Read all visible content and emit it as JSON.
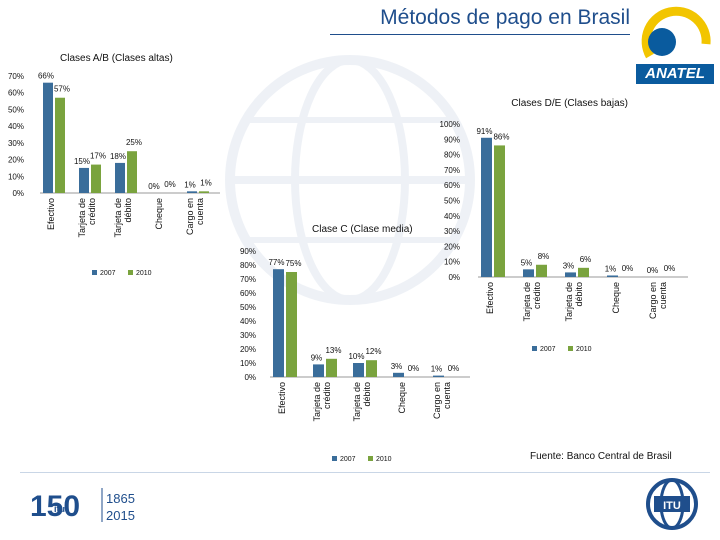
{
  "header": {
    "title": "Métodos de pago en Brasil",
    "logo_text": "ANATEL"
  },
  "colors": {
    "series_2007": "#3a6d9a",
    "series_2010": "#7aa33e",
    "title": "#1f4e8c",
    "anatel_blue": "#0a5b9e",
    "anatel_yellow": "#f2c500"
  },
  "chart_data": [
    {
      "type": "bar",
      "title": "Clases A/B (Clases altas)",
      "categories": [
        "Efectivo",
        "Tarjeta de crédito",
        "Tarjeta de débito",
        "Cheque",
        "Cargo en cuenta"
      ],
      "series": [
        {
          "name": "2007",
          "values": [
            66,
            15,
            18,
            0,
            1
          ]
        },
        {
          "name": "2010",
          "values": [
            57,
            17,
            25,
            0,
            1
          ]
        }
      ],
      "data_labels": [
        [
          "66%",
          "15%",
          "18%",
          "0%",
          "1%"
        ],
        [
          "57%",
          "17%",
          "25%",
          "0%",
          "1%"
        ]
      ],
      "ylim": [
        0,
        70
      ],
      "yticks": [
        "0%",
        "10%",
        "20%",
        "30%",
        "40%",
        "50%",
        "60%",
        "70%"
      ],
      "ytick_values": [
        0,
        10,
        20,
        30,
        40,
        50,
        60,
        70
      ],
      "legend": [
        "2007",
        "2010"
      ],
      "legend_position": "bottom"
    },
    {
      "type": "bar",
      "title": "Clase C (Clase media)",
      "categories": [
        "Efectivo",
        "Tarjeta de crédito",
        "Tarjeta de débito",
        "Cheque",
        "Cargo en cuenta"
      ],
      "series": [
        {
          "name": "2007",
          "values": [
            77,
            9,
            10,
            3,
            1
          ]
        },
        {
          "name": "2010",
          "values": [
            75,
            13,
            12,
            0,
            0
          ]
        }
      ],
      "data_labels": [
        [
          "77%",
          "9%",
          "10%",
          "3%",
          "1%"
        ],
        [
          "75%",
          "13%",
          "12%",
          "0%",
          "0%"
        ]
      ],
      "ylim": [
        0,
        90
      ],
      "yticks": [
        "0%",
        "10%",
        "20%",
        "30%",
        "40%",
        "50%",
        "60%",
        "70%",
        "80%",
        "90%"
      ],
      "ytick_values": [
        0,
        10,
        20,
        30,
        40,
        50,
        60,
        70,
        80,
        90
      ],
      "legend": [
        "2007",
        "2010"
      ],
      "legend_position": "bottom"
    },
    {
      "type": "bar",
      "title": "Clases D/E (Clases bajas)",
      "categories": [
        "Efectivo",
        "Tarjeta de crédito",
        "Tarjeta de débito",
        "Cheque",
        "Cargo en cuenta"
      ],
      "series": [
        {
          "name": "2007",
          "values": [
            91,
            5,
            3,
            1,
            0
          ]
        },
        {
          "name": "2010",
          "values": [
            86,
            8,
            6,
            0,
            0
          ]
        }
      ],
      "data_labels": [
        [
          "91%",
          "5%",
          "3%",
          "1%",
          "0%"
        ],
        [
          "86%",
          "8%",
          "6%",
          "0%",
          "0%"
        ]
      ],
      "ylim": [
        0,
        100
      ],
      "yticks": [
        "0%",
        "10%",
        "20%",
        "30%",
        "40%",
        "50%",
        "60%",
        "70%",
        "80%",
        "90%",
        "100%"
      ],
      "ytick_values": [
        0,
        10,
        20,
        30,
        40,
        50,
        60,
        70,
        80,
        90,
        100
      ],
      "legend": [
        "2007",
        "2010"
      ],
      "legend_position": "bottom"
    }
  ],
  "footer": {
    "source": "Fuente: Banco Central de Brasil",
    "anniversary_number": "150",
    "anniversary_mark": "itu",
    "year_start": "1865",
    "year_end": "2015",
    "itu_logo_text": "ITU"
  }
}
